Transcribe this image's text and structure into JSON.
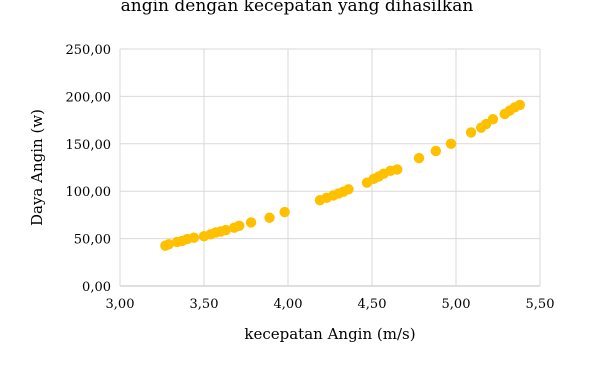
{
  "chart_data": {
    "type": "scatter",
    "title": "angin dengan kecepatan yang dihasilkan",
    "xlabel": "kecepatan Angin (m/s)",
    "ylabel": "Daya Angin (w)",
    "xlim": [
      3.0,
      5.5
    ],
    "ylim": [
      0,
      250
    ],
    "x_ticks": [
      "3,00",
      "3,50",
      "4,00",
      "4,50",
      "5,00",
      "5,50"
    ],
    "y_ticks": [
      "0,00",
      "50,00",
      "100,00",
      "150,00",
      "200,00",
      "250,00"
    ],
    "grid": true,
    "marker_color": "#FFC000",
    "series": [
      {
        "x": [
          3.27,
          3.29,
          3.34,
          3.37,
          3.4,
          3.44,
          3.5,
          3.54,
          3.57,
          3.6,
          3.63,
          3.68,
          3.71,
          3.78,
          3.89,
          3.98,
          4.19,
          4.23,
          4.27,
          4.3,
          4.33,
          4.36,
          4.47,
          4.51,
          4.54,
          4.57,
          4.61,
          4.65,
          4.78,
          4.88,
          4.97,
          5.09,
          5.15,
          5.18,
          5.22,
          5.29,
          5.32,
          5.35,
          5.38
        ],
        "y": [
          42.5,
          44,
          46.5,
          47.5,
          49.5,
          51,
          52.5,
          54.5,
          56.5,
          57.5,
          59,
          61.5,
          63.5,
          67,
          72,
          78,
          90.5,
          93,
          95.5,
          97.5,
          99.5,
          102,
          109,
          113,
          115.5,
          118.5,
          121.5,
          123,
          135,
          142.5,
          150,
          162,
          167,
          171,
          176,
          181.5,
          185,
          188.5,
          191
        ]
      }
    ]
  }
}
